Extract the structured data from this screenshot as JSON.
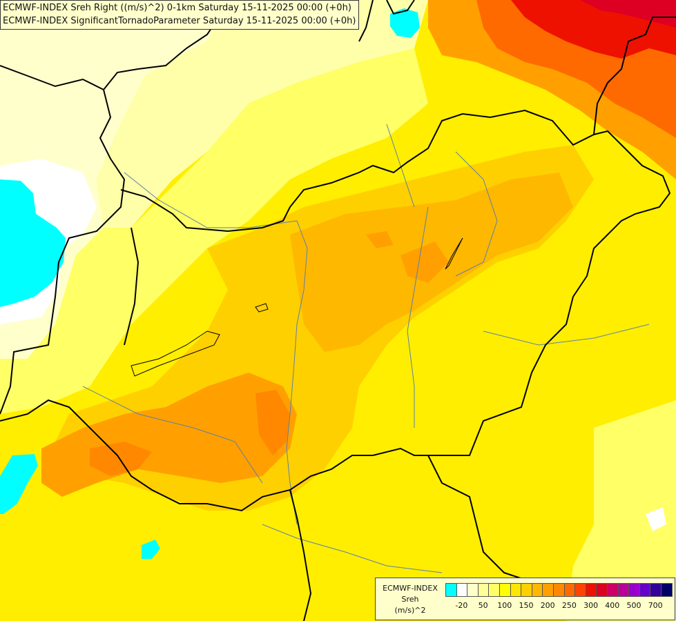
{
  "title": {
    "line1": "ECMWF-INDEX Sreh Right ((m/s)^2) 0-1km Saturday 15-11-2025 00:00 (+0h)",
    "line2": "ECMWF-INDEX SignificantTornadoParameter Saturday 15-11-2025 00:00 (+0h)"
  },
  "legend": {
    "line1": "ECMWF-INDEX",
    "line2": "Sreh",
    "line3": "(m/s)^2",
    "colors": [
      "#00ffff",
      "#ffffff",
      "#ffffcc",
      "#ffff99",
      "#ffff66",
      "#ffff00",
      "#ffe600",
      "#ffd000",
      "#ffb800",
      "#ffa000",
      "#ff8800",
      "#ff6a00",
      "#ff4400",
      "#ee1100",
      "#dd0022",
      "#cc0066",
      "#bb0099",
      "#9900cc",
      "#6600cc",
      "#330099",
      "#000066"
    ],
    "ticks": [
      "-20",
      "50",
      "100",
      "150",
      "200",
      "250",
      "300",
      "400",
      "500",
      "700"
    ]
  }
}
